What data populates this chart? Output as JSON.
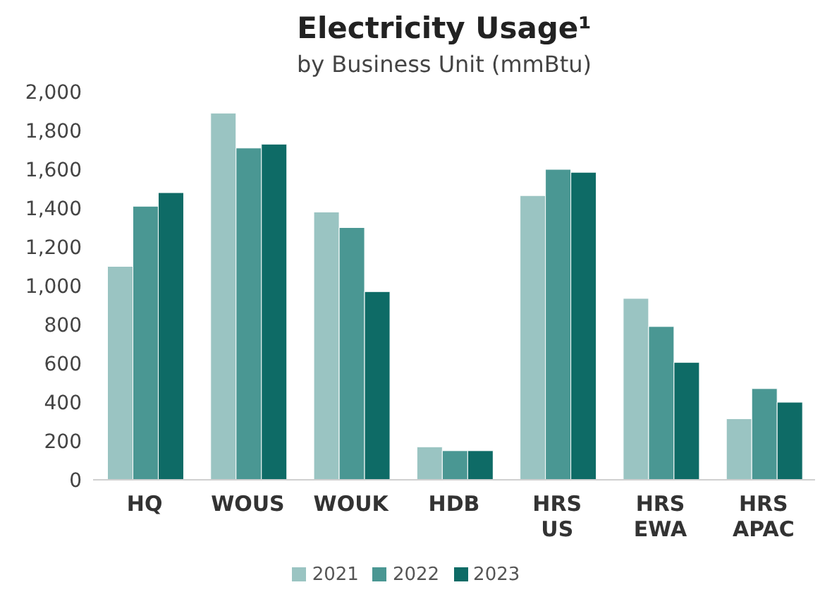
{
  "chart_data": {
    "type": "bar",
    "title": "Electricity Usage¹",
    "subtitle": "by Business Unit (mmBtu)",
    "categories": [
      "HQ",
      "WOUS",
      "WOUK",
      "HDB",
      "HRS US",
      "HRS EWA",
      "HRS APAC"
    ],
    "series": [
      {
        "name": "2021",
        "color": "#9ac4c2",
        "values": [
          1100,
          1890,
          1380,
          170,
          1465,
          935,
          315
        ]
      },
      {
        "name": "2022",
        "color": "#4a9793",
        "values": [
          1410,
          1710,
          1300,
          150,
          1600,
          790,
          470
        ]
      },
      {
        "name": "2023",
        "color": "#0e6b66",
        "values": [
          1480,
          1730,
          970,
          150,
          1585,
          605,
          400
        ]
      }
    ],
    "ylim": [
      0,
      2000
    ],
    "yticks": [
      0,
      200,
      400,
      600,
      800,
      {
        "value": 1000,
        "label": "1,000"
      },
      {
        "value": 1200,
        "label": "1,200"
      },
      {
        "value": 1400,
        "label": "1,400"
      },
      {
        "value": 1600,
        "label": "1,600"
      },
      {
        "value": 1800,
        "label": "1,800"
      },
      {
        "value": 2000,
        "label": "2,000"
      }
    ],
    "grid": false,
    "legend": "bottom"
  }
}
